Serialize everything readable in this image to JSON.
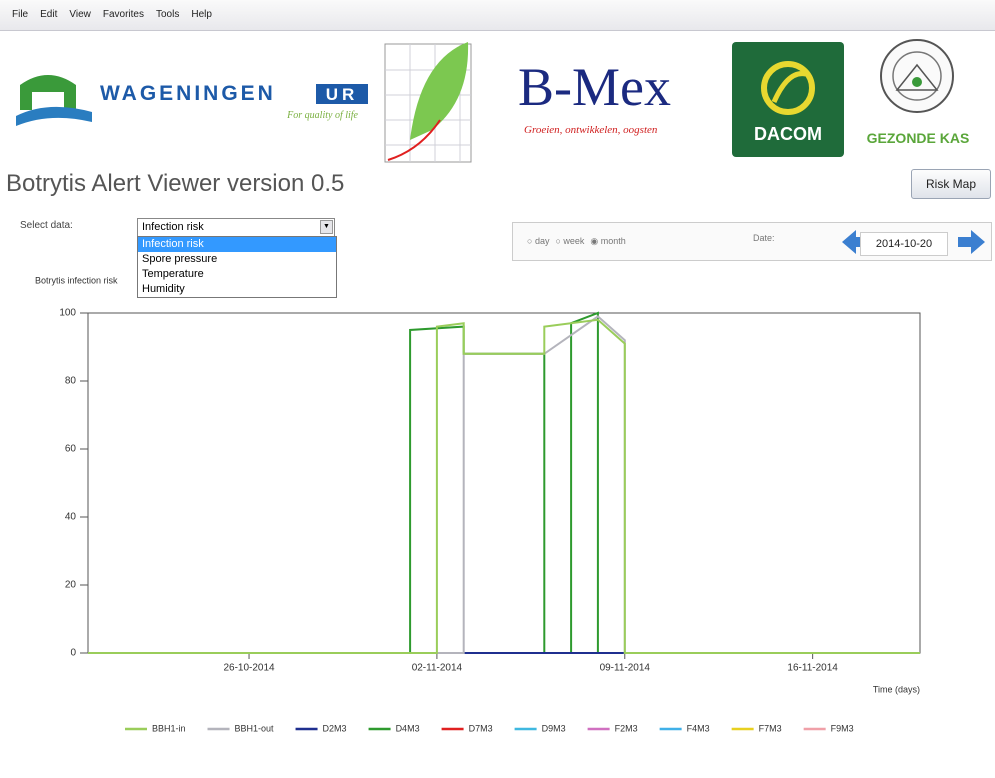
{
  "menu": [
    "File",
    "Edit",
    "View",
    "Favorites",
    "Tools",
    "Help"
  ],
  "logos": {
    "wageningen": "WAGENINGEN",
    "ur": "UR",
    "tagline": "For quality of life",
    "bmex": "B-Mex",
    "bmex_tagline": "Groeien, ontwikkelen, oogsten",
    "dacom": "DACOM",
    "gezonde_kas": "GEZONDE KAS"
  },
  "title": "Botrytis Alert Viewer version 0.5",
  "risk_map_button": "Risk Map",
  "select_label": "Select data:",
  "select_value": "Infection risk",
  "select_options": [
    "Infection risk",
    "Spore pressure",
    "Temperature",
    "Humidity"
  ],
  "period_options": [
    "day",
    "week",
    "month"
  ],
  "selected_period": "month",
  "date_label": "Date:",
  "date_value": "2014-10-20",
  "chart_data": {
    "type": "line",
    "y_label": "Botrytis infection risk",
    "x_label": "Time (days)",
    "xlim": [
      "2014-10-20",
      "2014-11-20"
    ],
    "xticks": [
      {
        "value": "2014-10-26",
        "label": "26-10-2014"
      },
      {
        "value": "2014-11-02",
        "label": "02-11-2014"
      },
      {
        "value": "2014-11-09",
        "label": "09-11-2014"
      },
      {
        "value": "2014-11-16",
        "label": "16-11-2014"
      }
    ],
    "ylim": [
      0,
      100
    ],
    "yticks": [
      0,
      20,
      40,
      60,
      80,
      100
    ],
    "grid": false,
    "legend": "bottom",
    "series": [
      {
        "name": "BBH1-in",
        "color": "#9acd5a",
        "x": [
          "2014-10-20",
          "2014-11-02",
          "2014-11-02",
          "2014-11-03",
          "2014-11-03",
          "2014-11-06",
          "2014-11-06",
          "2014-11-08",
          "2014-11-09",
          "2014-11-09",
          "2014-11-20"
        ],
        "values": [
          0,
          0,
          96,
          97,
          88,
          88,
          96,
          98,
          91,
          0,
          0
        ]
      },
      {
        "name": "BBH1-out",
        "color": "#b4b4bc",
        "x": [
          "2014-10-20",
          "2014-11-03",
          "2014-11-03",
          "2014-11-06",
          "2014-11-08",
          "2014-11-09",
          "2014-11-09",
          "2014-11-20"
        ],
        "values": [
          0,
          0,
          88,
          88,
          99,
          92,
          0,
          0
        ]
      },
      {
        "name": "D2M3",
        "color": "#1f2f8f",
        "x": [
          "2014-10-20",
          "2014-11-20"
        ],
        "values": [
          0,
          0
        ]
      },
      {
        "name": "D4M3",
        "color": "#2e9a2e",
        "x": [
          "2014-10-20",
          "2014-11-01",
          "2014-11-01",
          "2014-11-03",
          "2014-11-03",
          "2014-11-06",
          "2014-11-06",
          "2014-11-07",
          "2014-11-07",
          "2014-11-08",
          "2014-11-08",
          "2014-11-20"
        ],
        "values": [
          0,
          0,
          95,
          96,
          88,
          88,
          0,
          0,
          97,
          100,
          0,
          0
        ]
      },
      {
        "name": "D7M3",
        "color": "#e02020",
        "x": [
          "2014-10-20",
          "2014-11-20"
        ],
        "values": [
          0,
          0
        ]
      },
      {
        "name": "D9M3",
        "color": "#3fb8e0",
        "x": [
          "2014-10-20",
          "2014-11-20"
        ],
        "values": [
          0,
          0
        ]
      },
      {
        "name": "F2M3",
        "color": "#d070c0",
        "x": [
          "2014-10-20",
          "2014-11-20"
        ],
        "values": [
          0,
          0
        ]
      },
      {
        "name": "F4M3",
        "color": "#40b0e8",
        "x": [
          "2014-10-20",
          "2014-11-20"
        ],
        "values": [
          0,
          0
        ]
      },
      {
        "name": "F7M3",
        "color": "#e8d020",
        "x": [
          "2014-10-20",
          "2014-11-20"
        ],
        "values": [
          0,
          0
        ]
      },
      {
        "name": "F9M3",
        "color": "#f0a0a8",
        "x": [
          "2014-10-20",
          "2014-11-20"
        ],
        "values": [
          0,
          0
        ]
      }
    ]
  }
}
